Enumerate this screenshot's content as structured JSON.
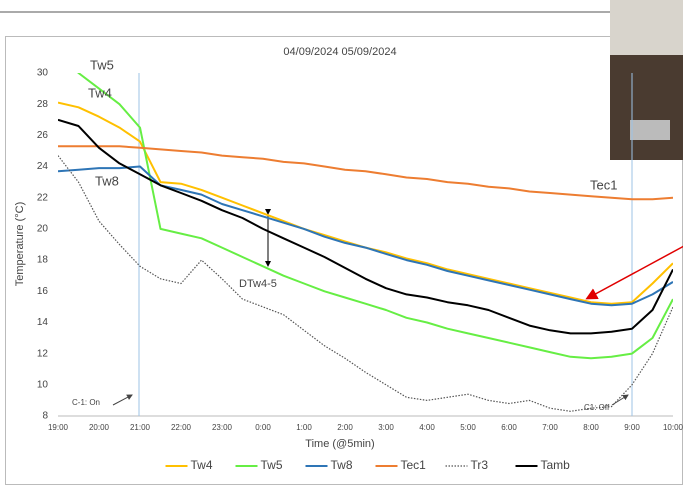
{
  "chart_data": {
    "type": "line",
    "title": "04/09/2024 05/09/2024",
    "x_label": "Time (@5min)",
    "y_label": "Temperature (°C)",
    "categories": [
      "19:00",
      null,
      "20:00",
      null,
      "21:00",
      null,
      "22:00",
      null,
      "23:00",
      null,
      "0:00",
      null,
      "1:00",
      null,
      "2:00",
      null,
      "3:00",
      null,
      "4:00",
      null,
      "5:00",
      null,
      "6:00",
      null,
      "7:00",
      null,
      "8:00",
      null,
      "9:00",
      null,
      "10:00"
    ],
    "ylim": [
      8,
      30
    ],
    "yticks": [
      8,
      10,
      12,
      14,
      16,
      18,
      20,
      22,
      24,
      26,
      28,
      30
    ],
    "grid": false,
    "legend": "bottom",
    "series": [
      {
        "name": "Tw4",
        "color": "#ffc000",
        "values": [
          28.1,
          27.8,
          27.2,
          26.5,
          25.6,
          23.0,
          22.9,
          22.5,
          22.0,
          21.5,
          21.0,
          20.5,
          20.0,
          19.6,
          19.2,
          18.8,
          18.5,
          18.1,
          17.8,
          17.4,
          17.1,
          16.8,
          16.5,
          16.2,
          15.9,
          15.6,
          15.3,
          15.2,
          15.3,
          16.5,
          17.8
        ]
      },
      {
        "name": "Tw5",
        "color": "#66ee44",
        "values": [
          31.5,
          30.0,
          29.0,
          28.0,
          26.5,
          20.0,
          19.7,
          19.4,
          18.8,
          18.2,
          17.6,
          17.0,
          16.5,
          16.0,
          15.6,
          15.2,
          14.8,
          14.3,
          14.0,
          13.6,
          13.3,
          13.0,
          12.7,
          12.4,
          12.1,
          11.8,
          11.7,
          11.8,
          12.0,
          13.0,
          15.5
        ]
      },
      {
        "name": "Tw8",
        "color": "#2e75b6",
        "values": [
          23.7,
          23.8,
          23.9,
          23.9,
          24.0,
          22.8,
          22.5,
          22.2,
          21.6,
          21.2,
          20.8,
          20.4,
          20.0,
          19.5,
          19.1,
          18.8,
          18.4,
          18.0,
          17.7,
          17.3,
          17.0,
          16.7,
          16.4,
          16.1,
          15.8,
          15.5,
          15.2,
          15.1,
          15.2,
          15.8,
          16.6
        ]
      },
      {
        "name": "Tec1",
        "color": "#ed7d31",
        "values": [
          25.3,
          25.3,
          25.3,
          25.3,
          25.2,
          25.1,
          25.0,
          24.9,
          24.7,
          24.6,
          24.5,
          24.3,
          24.2,
          24.0,
          23.8,
          23.7,
          23.5,
          23.3,
          23.2,
          23.0,
          22.9,
          22.7,
          22.6,
          22.4,
          22.3,
          22.2,
          22.1,
          22.0,
          21.9,
          21.9,
          22.0
        ]
      },
      {
        "name": "Tr3",
        "color": "#555555",
        "dash": "dotted",
        "values": [
          24.7,
          23.0,
          20.5,
          19.0,
          17.6,
          16.8,
          16.5,
          18.0,
          16.8,
          15.5,
          15.0,
          14.5,
          13.5,
          12.5,
          11.7,
          10.8,
          10.0,
          9.2,
          9.0,
          9.2,
          9.4,
          9.0,
          8.8,
          9.0,
          8.5,
          8.3,
          8.5,
          8.6,
          10.0,
          12.0,
          15.0
        ]
      },
      {
        "name": "Tamb",
        "color": "#000000",
        "values": [
          27.0,
          26.6,
          25.2,
          24.2,
          23.5,
          22.8,
          22.3,
          21.8,
          21.2,
          20.7,
          20.0,
          19.4,
          18.8,
          18.2,
          17.5,
          16.8,
          16.2,
          15.8,
          15.6,
          15.3,
          15.1,
          14.8,
          14.3,
          13.8,
          13.5,
          13.3,
          13.3,
          13.4,
          13.6,
          14.8,
          17.4
        ]
      }
    ],
    "annotations": [
      "Tw5",
      "Tw4",
      "Tw8",
      "Tec1",
      "DTw4-5",
      "C-1: On",
      "C1: Off"
    ]
  }
}
